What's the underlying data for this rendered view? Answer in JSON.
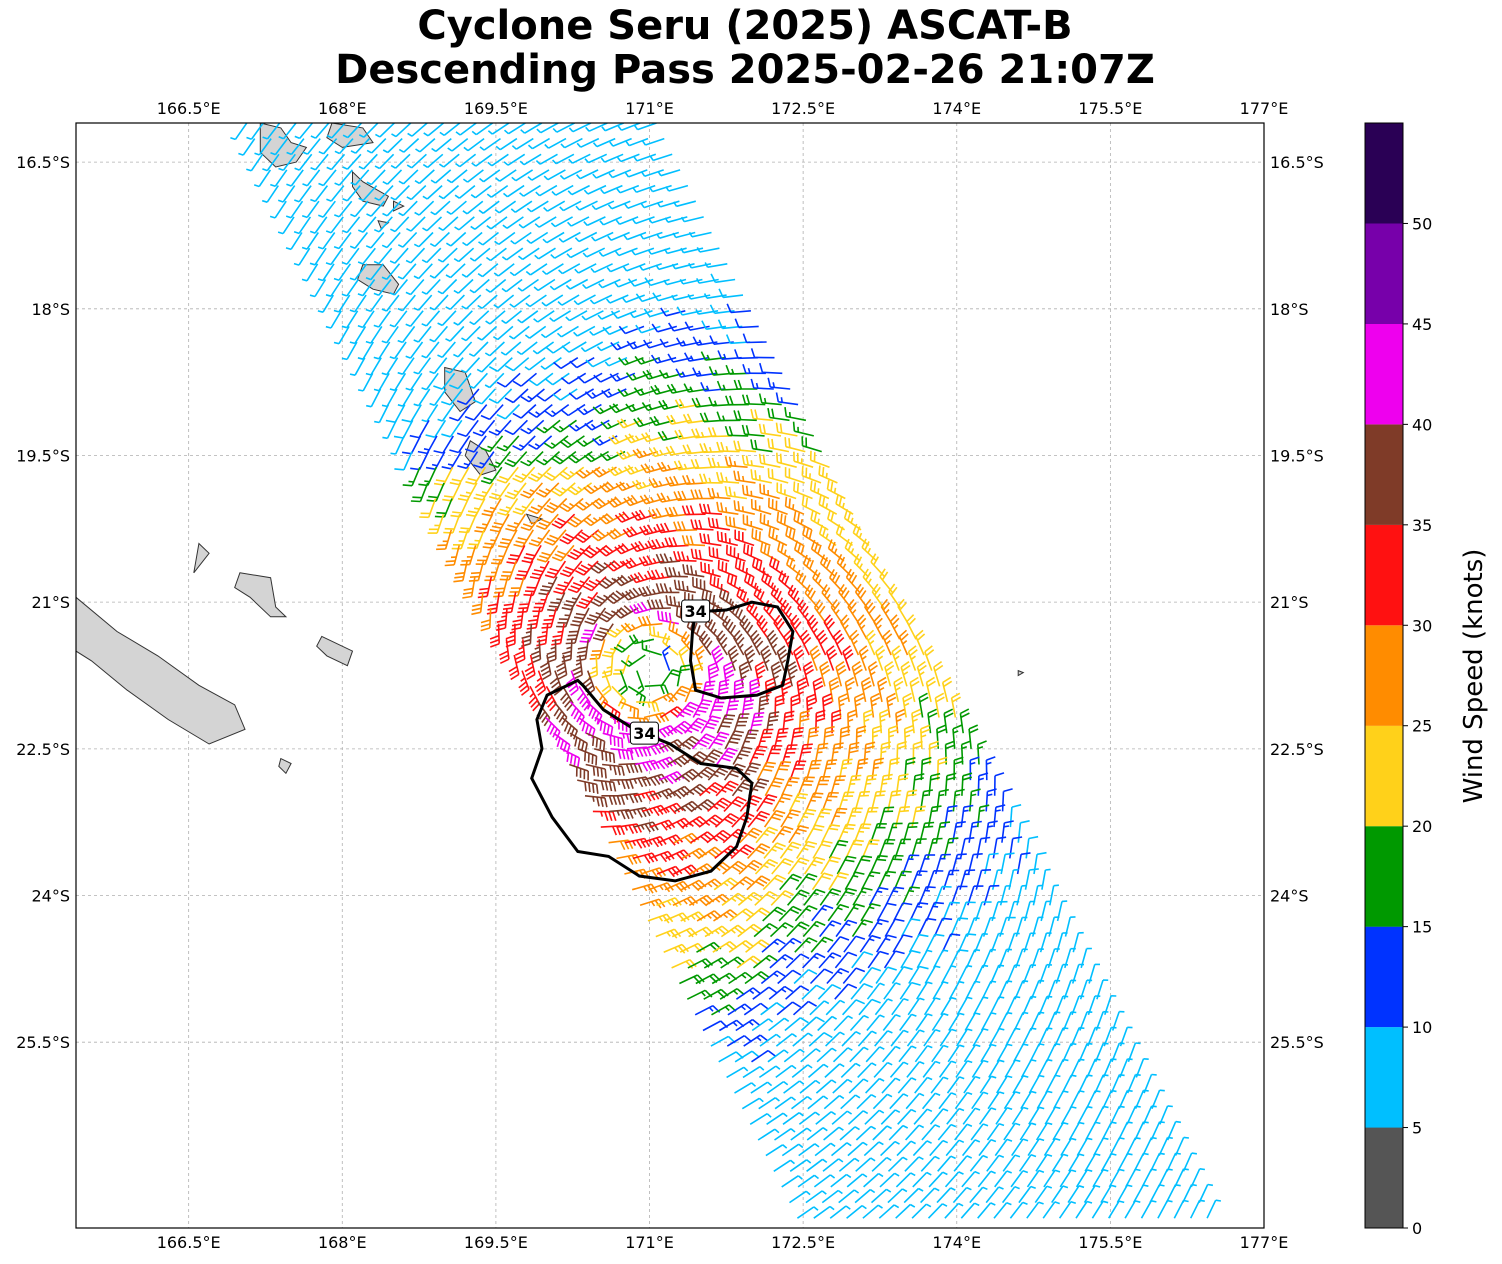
{
  "title": {
    "line1": "Cyclone Seru (2025) ASCAT-B",
    "line2": "Descending Pass 2025-02-26 21:07Z"
  },
  "map": {
    "lon_range": [
      165.4,
      177.0
    ],
    "lat_range": [
      -27.4,
      -16.1
    ],
    "lon_ticks": [
      {
        "value": 166.5,
        "label": "166.5°E"
      },
      {
        "value": 168.0,
        "label": "168°E"
      },
      {
        "value": 169.5,
        "label": "169.5°E"
      },
      {
        "value": 171.0,
        "label": "171°E"
      },
      {
        "value": 172.5,
        "label": "172.5°E"
      },
      {
        "value": 174.0,
        "label": "174°E"
      },
      {
        "value": 175.5,
        "label": "175.5°E"
      },
      {
        "value": 177.0,
        "label": "177°E"
      }
    ],
    "lat_ticks": [
      {
        "value": -16.5,
        "label": "16.5°S"
      },
      {
        "value": -18.0,
        "label": "18°S"
      },
      {
        "value": -19.5,
        "label": "19.5°S"
      },
      {
        "value": -21.0,
        "label": "21°S"
      },
      {
        "value": -22.5,
        "label": "22.5°S"
      },
      {
        "value": -24.0,
        "label": "24°S"
      },
      {
        "value": -25.5,
        "label": "25.5°S"
      }
    ],
    "gridlines": true,
    "cyclone_center": {
      "lon": 171.0,
      "lat": -21.7
    },
    "contour_label": "34",
    "contour_34kt": [
      {
        "label_at": {
          "lon": 170.95,
          "lat": -22.35
        },
        "points": [
          [
            170.3,
            -21.8
          ],
          [
            170.0,
            -21.95
          ],
          [
            169.9,
            -22.2
          ],
          [
            169.95,
            -22.5
          ],
          [
            169.85,
            -22.8
          ],
          [
            170.05,
            -23.2
          ],
          [
            170.3,
            -23.55
          ],
          [
            170.6,
            -23.6
          ],
          [
            170.9,
            -23.8
          ],
          [
            171.25,
            -23.85
          ],
          [
            171.6,
            -23.75
          ],
          [
            171.85,
            -23.5
          ],
          [
            171.95,
            -23.2
          ],
          [
            172.0,
            -22.85
          ],
          [
            171.85,
            -22.7
          ],
          [
            171.5,
            -22.65
          ],
          [
            171.2,
            -22.45
          ],
          [
            170.85,
            -22.3
          ],
          [
            170.55,
            -22.1
          ],
          [
            170.35,
            -21.85
          ]
        ]
      },
      {
        "label_at": {
          "lon": 171.45,
          "lat": -21.1
        },
        "points": [
          [
            171.45,
            -21.1
          ],
          [
            171.75,
            -21.08
          ],
          [
            172.0,
            -21.0
          ],
          [
            172.25,
            -21.05
          ],
          [
            172.4,
            -21.3
          ],
          [
            172.35,
            -21.6
          ],
          [
            172.3,
            -21.85
          ],
          [
            172.05,
            -21.95
          ],
          [
            171.7,
            -21.98
          ],
          [
            171.45,
            -21.9
          ],
          [
            171.4,
            -21.6
          ],
          [
            171.42,
            -21.3
          ]
        ]
      }
    ],
    "islands": [
      [
        [
          167.2,
          -16.1
        ],
        [
          167.4,
          -16.15
        ],
        [
          167.5,
          -16.3
        ],
        [
          167.65,
          -16.35
        ],
        [
          167.55,
          -16.5
        ],
        [
          167.35,
          -16.55
        ],
        [
          167.2,
          -16.4
        ]
      ],
      [
        [
          167.9,
          -16.1
        ],
        [
          168.2,
          -16.15
        ],
        [
          168.3,
          -16.3
        ],
        [
          168.0,
          -16.35
        ],
        [
          167.85,
          -16.25
        ]
      ],
      [
        [
          168.1,
          -16.6
        ],
        [
          168.2,
          -16.7
        ],
        [
          168.45,
          -16.85
        ],
        [
          168.4,
          -16.95
        ],
        [
          168.2,
          -16.9
        ],
        [
          168.1,
          -16.75
        ]
      ],
      [
        [
          168.5,
          -16.9
        ],
        [
          168.6,
          -16.95
        ],
        [
          168.5,
          -17.0
        ]
      ],
      [
        [
          168.35,
          -17.1
        ],
        [
          168.45,
          -17.12
        ],
        [
          168.38,
          -17.18
        ]
      ],
      [
        [
          168.2,
          -17.55
        ],
        [
          168.4,
          -17.55
        ],
        [
          168.55,
          -17.75
        ],
        [
          168.5,
          -17.85
        ],
        [
          168.3,
          -17.8
        ],
        [
          168.15,
          -17.7
        ]
      ],
      [
        [
          169.0,
          -18.6
        ],
        [
          169.2,
          -18.65
        ],
        [
          169.3,
          -18.95
        ],
        [
          169.15,
          -19.05
        ],
        [
          169.0,
          -18.85
        ]
      ],
      [
        [
          169.25,
          -19.35
        ],
        [
          169.4,
          -19.45
        ],
        [
          169.5,
          -19.65
        ],
        [
          169.35,
          -19.7
        ],
        [
          169.2,
          -19.5
        ]
      ],
      [
        [
          169.8,
          -20.1
        ],
        [
          169.95,
          -20.15
        ],
        [
          169.85,
          -20.2
        ]
      ],
      [
        [
          166.6,
          -20.4
        ],
        [
          166.7,
          -20.5
        ],
        [
          166.55,
          -20.7
        ]
      ],
      [
        [
          167.0,
          -20.7
        ],
        [
          167.3,
          -20.75
        ],
        [
          167.35,
          -21.05
        ],
        [
          167.45,
          -21.15
        ],
        [
          167.3,
          -21.15
        ],
        [
          167.1,
          -20.95
        ],
        [
          166.95,
          -20.85
        ]
      ],
      [
        [
          167.8,
          -21.35
        ],
        [
          168.1,
          -21.5
        ],
        [
          168.05,
          -21.65
        ],
        [
          167.85,
          -21.55
        ],
        [
          167.75,
          -21.45
        ]
      ],
      [
        [
          165.4,
          -20.95
        ],
        [
          165.8,
          -21.3
        ],
        [
          166.2,
          -21.55
        ],
        [
          166.6,
          -21.85
        ],
        [
          166.95,
          -22.05
        ],
        [
          167.05,
          -22.3
        ],
        [
          166.7,
          -22.45
        ],
        [
          166.3,
          -22.2
        ],
        [
          165.9,
          -21.9
        ],
        [
          165.55,
          -21.6
        ],
        [
          165.4,
          -21.5
        ]
      ],
      [
        [
          167.4,
          -22.6
        ],
        [
          167.5,
          -22.65
        ],
        [
          167.45,
          -22.75
        ],
        [
          167.38,
          -22.68
        ]
      ],
      [
        [
          174.6,
          -21.7
        ],
        [
          174.65,
          -21.72
        ],
        [
          174.6,
          -21.75
        ]
      ]
    ]
  },
  "colorbar": {
    "label": "Wind Speed (knots)",
    "ticks": [
      "0",
      "5",
      "10",
      "15",
      "20",
      "25",
      "30",
      "35",
      "40",
      "45",
      "50"
    ],
    "bins": [
      {
        "min": 0,
        "max": 5,
        "color": "#555555"
      },
      {
        "min": 5,
        "max": 10,
        "color": "#00bfff"
      },
      {
        "min": 10,
        "max": 15,
        "color": "#0033ff"
      },
      {
        "min": 15,
        "max": 20,
        "color": "#009900"
      },
      {
        "min": 20,
        "max": 25,
        "color": "#ffd11a"
      },
      {
        "min": 25,
        "max": 30,
        "color": "#ff8c00"
      },
      {
        "min": 30,
        "max": 35,
        "color": "#ff1111"
      },
      {
        "min": 35,
        "max": 40,
        "color": "#7f3b28"
      },
      {
        "min": 40,
        "max": 45,
        "color": "#ee00ee"
      },
      {
        "min": 45,
        "max": 50,
        "color": "#7700aa"
      },
      {
        "min": 50,
        "max": 55,
        "color": "#2a0055"
      }
    ]
  }
}
